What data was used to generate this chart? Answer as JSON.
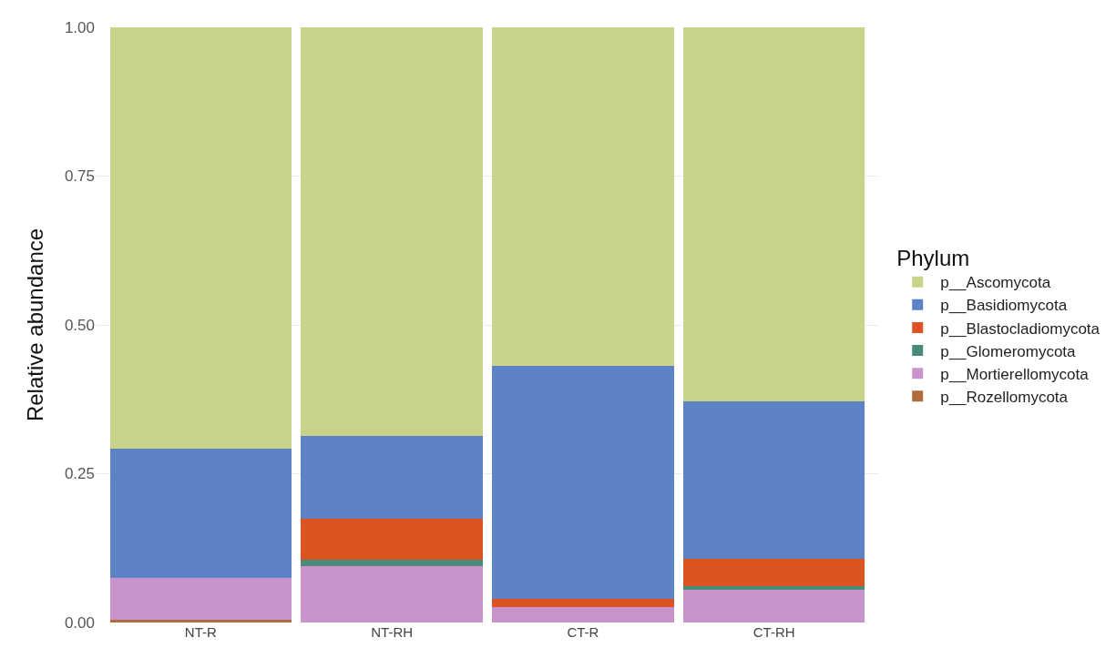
{
  "chart_data": {
    "type": "bar",
    "stacked": true,
    "ylabel": "Relative abundance",
    "legend_title": "Phylum",
    "legend": "right",
    "grid": true,
    "categories": [
      "NT-R",
      "NT-RH",
      "CT-R",
      "CT-RH"
    ],
    "ylim": [
      0,
      1.0
    ],
    "yticks": [
      {
        "value": 0,
        "label": "0.00"
      },
      {
        "value": 0.25,
        "label": "0.25"
      },
      {
        "value": 0.5,
        "label": "0.50"
      },
      {
        "value": 0.75,
        "label": "0.75"
      },
      {
        "value": 1,
        "label": "1.00"
      }
    ],
    "series": [
      {
        "name": "p__Rozellomycota",
        "color": "#b06c3a",
        "values": [
          0.005,
          0,
          0,
          0
        ]
      },
      {
        "name": "p__Mortierellomycota",
        "color": "#c994cc",
        "values": [
          0.07,
          0.095,
          0.026,
          0.055
        ]
      },
      {
        "name": "p__Glomeromycota",
        "color": "#4a8a78",
        "values": [
          0,
          0.011,
          0,
          0.006
        ]
      },
      {
        "name": "p__Blastocladiomycota",
        "color": "#db5421",
        "values": [
          0,
          0.068,
          0.013,
          0.046
        ]
      },
      {
        "name": "p__Basidiomycota",
        "color": "#5e82c6",
        "values": [
          0.217,
          0.139,
          0.392,
          0.264
        ]
      },
      {
        "name": "p__Ascomycota",
        "color": "#c9d38a",
        "values": [
          0.708,
          0.687,
          0.569,
          0.629
        ]
      }
    ]
  }
}
